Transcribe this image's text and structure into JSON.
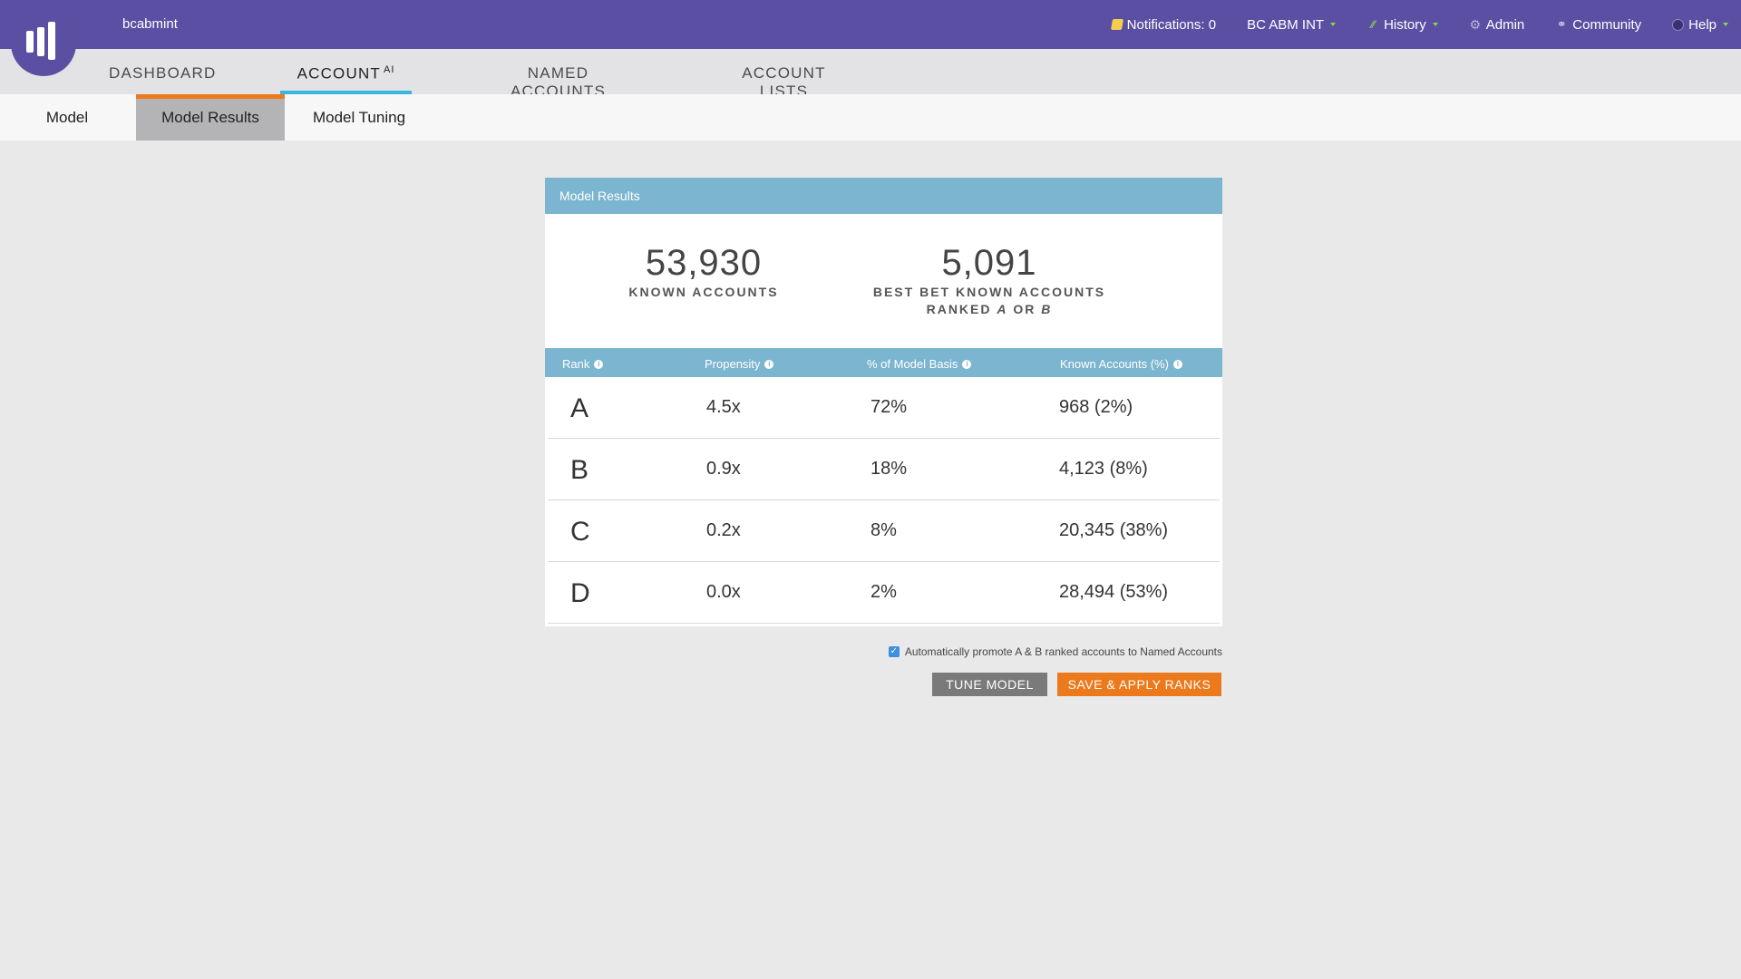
{
  "header": {
    "account_name": "bcabmint",
    "notifications": "Notifications: 0",
    "workspace": "BC ABM INT",
    "history": "History",
    "admin": "Admin",
    "community": "Community",
    "help": "Help",
    "icons": [
      "marketo-logo",
      "notification-icon",
      "history-icon",
      "gear-icon",
      "community-icon",
      "help-icon"
    ]
  },
  "main_nav": {
    "tabs": [
      {
        "label": "DASHBOARD"
      },
      {
        "label": "ACCOUNT",
        "sup": "AI",
        "active": true
      },
      {
        "label": "NAMED ACCOUNTS"
      },
      {
        "label": "ACCOUNT LISTS"
      }
    ]
  },
  "sub_nav": {
    "tabs": [
      {
        "label": "Model"
      },
      {
        "label": "Model Results",
        "active": true
      },
      {
        "label": "Model Tuning"
      }
    ]
  },
  "panel": {
    "title": "Model Results",
    "stats": [
      {
        "value": "53,930",
        "label": "KNOWN ACCOUNTS"
      },
      {
        "value": "5,091",
        "label_line1": "BEST BET KNOWN ACCOUNTS",
        "label_line2_pre": "RANKED ",
        "label_a": "A",
        "label_or": " OR ",
        "label_b": "B"
      }
    ],
    "columns": [
      "Rank",
      "Propensity",
      "% of Model Basis",
      "Known Accounts (%)"
    ],
    "rows": [
      {
        "rank": "A",
        "propensity": "4.5x",
        "basis": "72%",
        "known": "968 (2%)"
      },
      {
        "rank": "B",
        "propensity": "0.9x",
        "basis": "18%",
        "known": "4,123 (8%)"
      },
      {
        "rank": "C",
        "propensity": "0.2x",
        "basis": "8%",
        "known": "20,345 (38%)"
      },
      {
        "rank": "D",
        "propensity": "0.0x",
        "basis": "2%",
        "known": "28,494 (53%)"
      }
    ]
  },
  "footer": {
    "promote_label": "Automatically promote A & B ranked accounts to Named Accounts",
    "promote_checked": true,
    "tune_button": "TUNE MODEL",
    "save_button": "SAVE & APPLY RANKS"
  },
  "colors": {
    "header_purple": "#5a4fa3",
    "table_header_blue": "#7cb5cf",
    "active_tab_underline": "#39b6e1",
    "active_subtab_accent": "#ec7a1c",
    "save_button": "#ec7a1c",
    "tune_button": "#7a7a7a"
  }
}
